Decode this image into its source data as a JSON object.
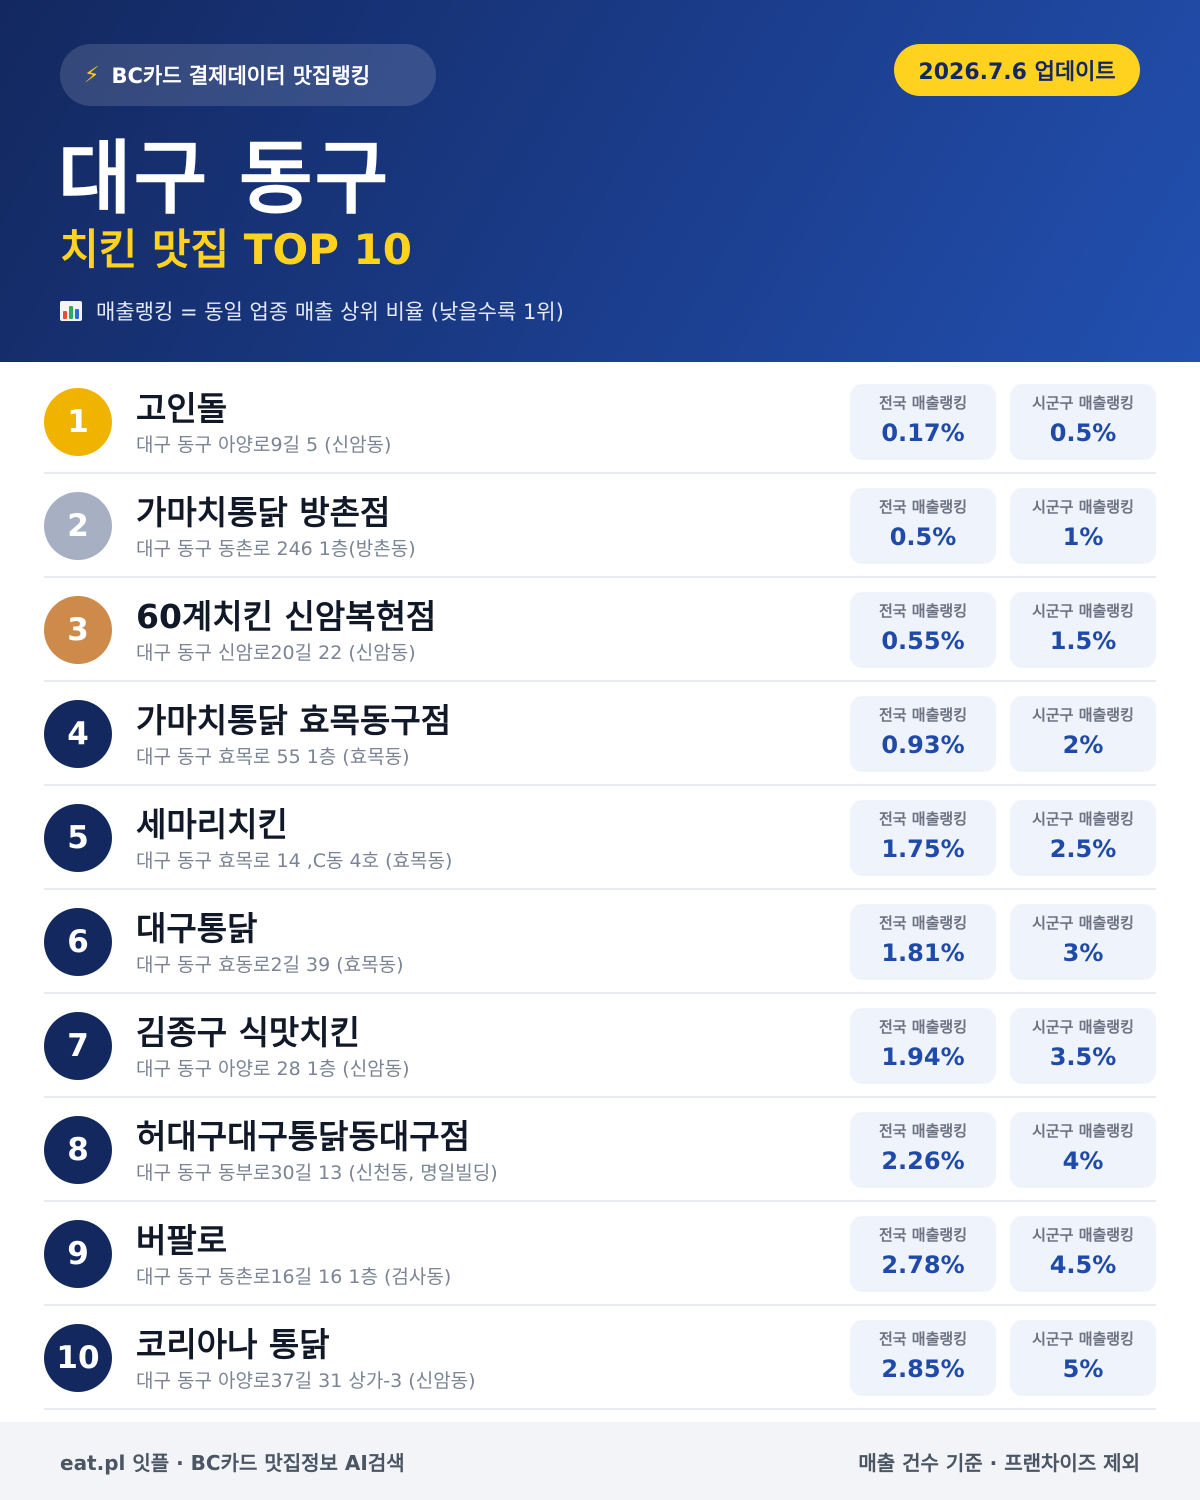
{
  "header": {
    "brand": "BC카드 결제데이터 맛집랭킹",
    "update": "2026.7.6 업데이트",
    "title": "대구 동구",
    "subtitle": "치킨 맛집 TOP 10",
    "note": "매출랭킹 = 동일 업종 매출 상위 비율 (낮을수록 1위)"
  },
  "stat_labels": {
    "national": "전국 매출랭킹",
    "local": "시군구 매출랭킹"
  },
  "rank_colors": {
    "gold": "#f0b400",
    "silver": "#a7b0c2",
    "bronze": "#cd8a4a",
    "default": "#13285f"
  },
  "items": [
    {
      "rank": "1",
      "name": "고인돌",
      "address": "대구 동구 아양로9길 5 (신암동)",
      "national": "0.17%",
      "local": "0.5%"
    },
    {
      "rank": "2",
      "name": "가마치통닭 방촌점",
      "address": "대구 동구 동촌로 246 1층(방촌동)",
      "national": "0.5%",
      "local": "1%"
    },
    {
      "rank": "3",
      "name": "60계치킨 신암복현점",
      "address": "대구 동구 신암로20길 22 (신암동)",
      "national": "0.55%",
      "local": "1.5%"
    },
    {
      "rank": "4",
      "name": "가마치통닭 효목동구점",
      "address": "대구 동구 효목로 55 1층 (효목동)",
      "national": "0.93%",
      "local": "2%"
    },
    {
      "rank": "5",
      "name": "세마리치킨",
      "address": "대구 동구 효목로 14 ,C동 4호 (효목동)",
      "national": "1.75%",
      "local": "2.5%"
    },
    {
      "rank": "6",
      "name": "대구통닭",
      "address": "대구 동구 효동로2길 39 (효목동)",
      "national": "1.81%",
      "local": "3%"
    },
    {
      "rank": "7",
      "name": "김종구 식맛치킨",
      "address": "대구 동구 아양로 28 1층 (신암동)",
      "national": "1.94%",
      "local": "3.5%"
    },
    {
      "rank": "8",
      "name": "허대구대구통닭동대구점",
      "address": "대구 동구 동부로30길 13 (신천동, 명일빌딩)",
      "national": "2.26%",
      "local": "4%"
    },
    {
      "rank": "9",
      "name": "버팔로",
      "address": "대구 동구 동촌로16길 16 1층 (검사동)",
      "national": "2.78%",
      "local": "4.5%"
    },
    {
      "rank": "10",
      "name": "코리아나 통닭",
      "address": "대구 동구 아양로37길 31 상가-3 (신암동)",
      "national": "2.85%",
      "local": "5%"
    }
  ],
  "footer": {
    "left": "eat.pl 잇플 · BC카드 맛집정보 AI검색",
    "right": "매출 건수 기준 · 프랜차이즈 제외"
  }
}
